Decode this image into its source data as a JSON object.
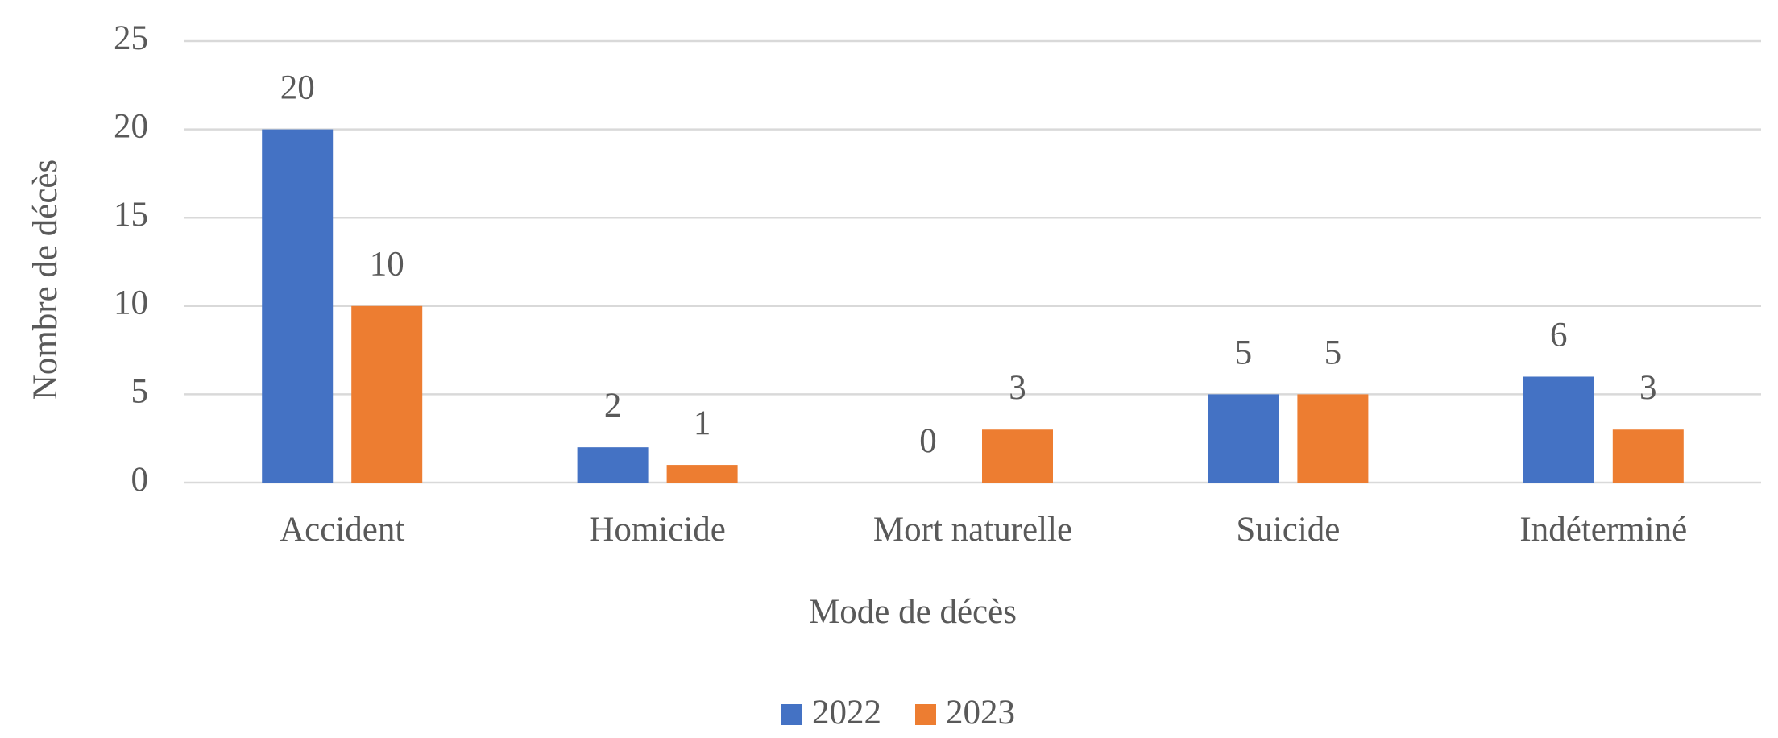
{
  "chart_data": {
    "type": "bar",
    "x_label": "Mode de décès",
    "y_label": "Nombre de décès",
    "categories": [
      "Accident",
      "Homicide",
      "Mort naturelle",
      "Suicide",
      "Indéterminé"
    ],
    "series": [
      {
        "name": "2022",
        "color": "#4472c4",
        "values": [
          20,
          2,
          0,
          5,
          6
        ]
      },
      {
        "name": "2023",
        "color": "#ed7d31",
        "values": [
          10,
          1,
          3,
          5,
          3
        ]
      }
    ],
    "ylim": [
      0,
      25
    ],
    "yticks": [
      0,
      5,
      10,
      15,
      20,
      25
    ],
    "grid": true,
    "legend": "bottom"
  }
}
